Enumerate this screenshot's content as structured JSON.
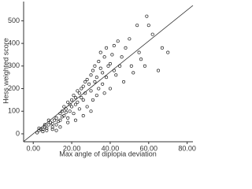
{
  "chart_data": {
    "type": "scatter",
    "x_label": "Max angle of diplopia deviation",
    "y_label": "Hess weighted score",
    "color": "#222222",
    "xlim": [
      -5,
      83
    ],
    "ylim": [
      -35,
      585
    ],
    "xticks": [
      {
        "value": 0,
        "label": "0.00"
      },
      {
        "value": 20,
        "label": "20.00"
      },
      {
        "value": 40,
        "label": "40.00"
      },
      {
        "value": 60,
        "label": "60.00"
      },
      {
        "value": 80,
        "label": "80.00"
      }
    ],
    "yticks": [
      0,
      100,
      200,
      300,
      400,
      500
    ],
    "reference_line": {
      "x": [
        -5,
        83
      ],
      "y": [
        -34,
        568
      ]
    },
    "x": [
      2,
      3,
      4,
      3,
      5,
      6,
      5,
      7,
      8,
      7,
      9,
      10,
      10,
      11,
      12,
      12,
      13,
      14,
      14,
      15,
      15,
      16,
      16,
      17,
      17,
      18,
      18,
      19,
      19,
      20,
      20,
      21,
      21,
      22,
      22,
      23,
      23,
      24,
      24,
      25,
      25,
      26,
      26,
      27,
      27,
      28,
      28,
      29,
      30,
      30,
      31,
      31,
      32,
      32,
      33,
      33,
      34,
      34,
      35,
      35,
      36,
      36,
      37,
      37,
      38,
      38,
      39,
      40,
      40,
      41,
      42,
      42,
      43,
      44,
      45,
      46,
      47,
      48,
      50,
      51,
      52,
      54,
      55,
      56,
      58,
      59,
      60,
      62,
      65,
      67,
      70,
      10,
      12,
      14,
      18,
      22,
      30,
      26,
      8,
      6
    ],
    "y": [
      5,
      15,
      20,
      25,
      10,
      30,
      20,
      25,
      40,
      15,
      50,
      45,
      30,
      60,
      70,
      40,
      55,
      90,
      60,
      100,
      75,
      80,
      120,
      110,
      95,
      140,
      70,
      130,
      100,
      150,
      120,
      90,
      170,
      160,
      130,
      140,
      190,
      180,
      110,
      200,
      160,
      210,
      150,
      230,
      180,
      240,
      120,
      220,
      260,
      190,
      280,
      150,
      300,
      230,
      250,
      170,
      320,
      200,
      290,
      360,
      270,
      220,
      340,
      180,
      380,
      250,
      300,
      310,
      200,
      350,
      280,
      390,
      260,
      410,
      300,
      340,
      230,
      380,
      420,
      300,
      270,
      480,
      360,
      330,
      300,
      520,
      480,
      440,
      280,
      380,
      360,
      20,
      15,
      30,
      50,
      60,
      100,
      80,
      60,
      40
    ]
  }
}
